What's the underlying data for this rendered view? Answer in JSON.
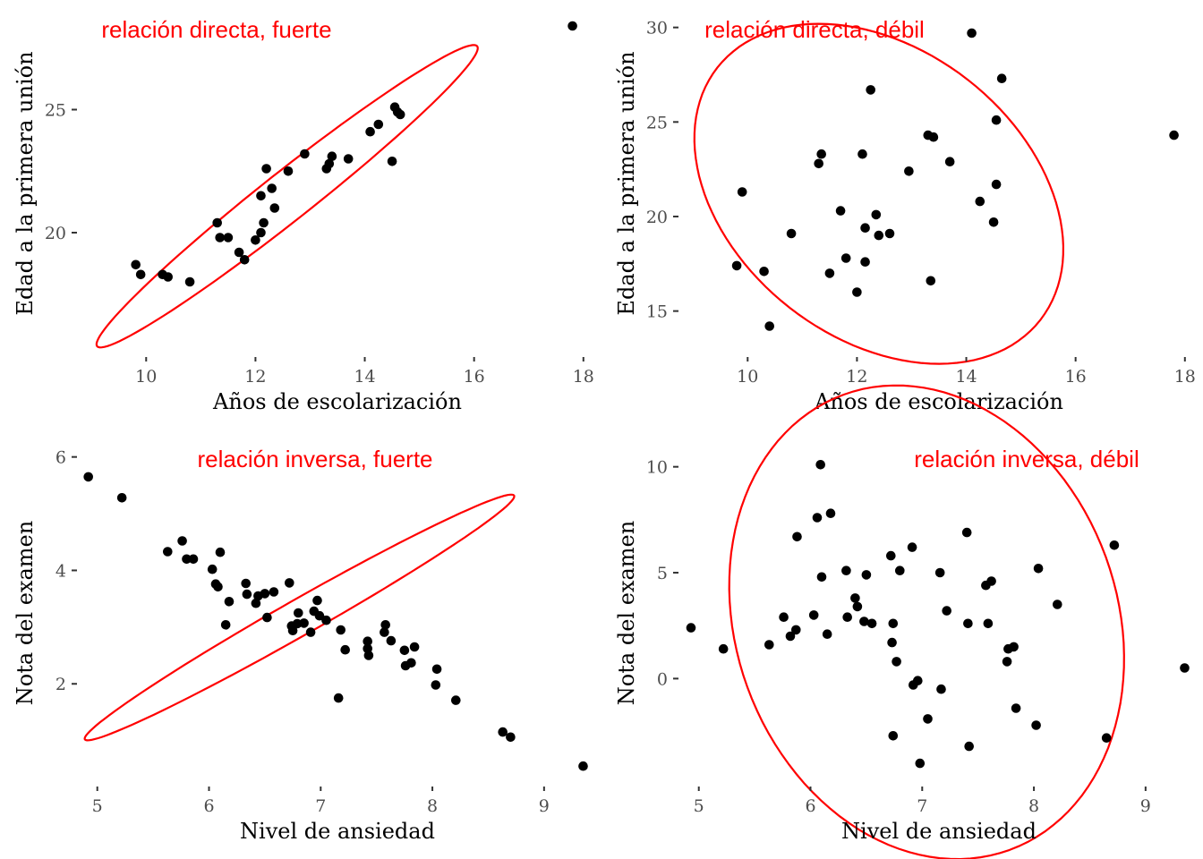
{
  "annotation_color": "#ff0000",
  "point_color": "#000000",
  "chart_data": [
    {
      "type": "scatter",
      "annotation": "relación directa, fuerte",
      "xlabel": "Años de escolarización",
      "ylabel": "Edad a la primera unión",
      "xlim": [
        8.8,
        18.2
      ],
      "ylim": [
        15.2,
        28.8
      ],
      "xticks": [
        10,
        12,
        14,
        16,
        18
      ],
      "yticks": [
        20,
        25
      ],
      "ellipse": {
        "cx": 12.58,
        "cy": 21.48,
        "rx": 4.43,
        "ry": 0.99,
        "angle_deg": 38.3
      },
      "points": [
        [
          9.81,
          18.7
        ],
        [
          9.9,
          18.3
        ],
        [
          10.3,
          18.3
        ],
        [
          10.4,
          18.2
        ],
        [
          10.8,
          18.0
        ],
        [
          11.3,
          20.4
        ],
        [
          11.35,
          19.8
        ],
        [
          11.5,
          19.8
        ],
        [
          11.7,
          19.2
        ],
        [
          11.8,
          18.9
        ],
        [
          12.0,
          19.7
        ],
        [
          12.1,
          20.0
        ],
        [
          12.1,
          21.5
        ],
        [
          12.15,
          20.4
        ],
        [
          12.2,
          22.6
        ],
        [
          12.3,
          21.8
        ],
        [
          12.35,
          21.0
        ],
        [
          12.6,
          22.5
        ],
        [
          12.9,
          23.2
        ],
        [
          13.3,
          22.6
        ],
        [
          13.35,
          22.8
        ],
        [
          13.4,
          23.1
        ],
        [
          13.7,
          23.0
        ],
        [
          14.1,
          24.1
        ],
        [
          14.25,
          24.4
        ],
        [
          14.5,
          22.9
        ],
        [
          14.55,
          25.1
        ],
        [
          14.6,
          24.9
        ],
        [
          14.65,
          24.8
        ],
        [
          17.8,
          28.4
        ]
      ]
    },
    {
      "type": "scatter",
      "annotation": "relación directa, débil",
      "xlabel": "Años de escolarización",
      "ylabel": "Edad a la primera unión",
      "xlim": [
        8.8,
        18.2
      ],
      "ylim": [
        12.9,
        30.6
      ],
      "xticks": [
        10,
        12,
        14,
        16,
        18
      ],
      "yticks": [
        15,
        20,
        25,
        30
      ],
      "ellipse": {
        "cx": 12.4,
        "cy": 21.2,
        "rx": 3.75,
        "ry": 7.65,
        "angle_deg": -38
      },
      "points": [
        [
          9.8,
          17.4
        ],
        [
          9.9,
          21.3
        ],
        [
          10.3,
          17.1
        ],
        [
          10.4,
          14.2
        ],
        [
          10.8,
          19.1
        ],
        [
          11.3,
          22.8
        ],
        [
          11.35,
          23.3
        ],
        [
          11.5,
          17.0
        ],
        [
          11.7,
          20.3
        ],
        [
          11.8,
          17.8
        ],
        [
          12.0,
          16.0
        ],
        [
          12.1,
          23.3
        ],
        [
          12.15,
          17.6
        ],
        [
          12.15,
          19.4
        ],
        [
          12.25,
          26.7
        ],
        [
          12.35,
          20.1
        ],
        [
          12.4,
          19.0
        ],
        [
          12.6,
          19.1
        ],
        [
          12.95,
          22.4
        ],
        [
          13.3,
          24.3
        ],
        [
          13.35,
          16.6
        ],
        [
          13.4,
          24.2
        ],
        [
          13.7,
          22.9
        ],
        [
          14.1,
          29.7
        ],
        [
          14.25,
          20.8
        ],
        [
          14.5,
          19.7
        ],
        [
          14.55,
          25.1
        ],
        [
          14.55,
          21.7
        ],
        [
          14.65,
          27.3
        ],
        [
          17.8,
          24.3
        ]
      ]
    },
    {
      "type": "scatter",
      "annotation": "relación inversa, fuerte",
      "xlabel": "Nivel de ansiedad",
      "ylabel": "Nota del examen",
      "xlim": [
        4.85,
        9.45
      ],
      "ylim": [
        0.3,
        6.2
      ],
      "xticks": [
        5,
        6,
        7,
        8,
        9
      ],
      "yticks": [
        2,
        4,
        6
      ],
      "ellipse": {
        "cx": 6.81,
        "cy": 3.17,
        "rx": 2.21,
        "ry": 0.315,
        "angle_deg": 29.6
      },
      "points": [
        [
          4.92,
          5.65
        ],
        [
          5.22,
          5.28
        ],
        [
          5.63,
          4.33
        ],
        [
          5.76,
          4.52
        ],
        [
          5.8,
          4.2
        ],
        [
          5.86,
          4.2
        ],
        [
          6.03,
          4.02
        ],
        [
          6.06,
          3.76
        ],
        [
          6.08,
          3.71
        ],
        [
          6.1,
          4.32
        ],
        [
          6.15,
          3.04
        ],
        [
          6.18,
          3.45
        ],
        [
          6.33,
          3.77
        ],
        [
          6.34,
          3.58
        ],
        [
          6.42,
          3.42
        ],
        [
          6.44,
          3.55
        ],
        [
          6.5,
          3.59
        ],
        [
          6.52,
          3.17
        ],
        [
          6.58,
          3.62
        ],
        [
          6.72,
          3.78
        ],
        [
          6.74,
          3.02
        ],
        [
          6.75,
          2.94
        ],
        [
          6.79,
          3.06
        ],
        [
          6.8,
          3.25
        ],
        [
          6.85,
          3.07
        ],
        [
          6.91,
          2.91
        ],
        [
          6.94,
          3.28
        ],
        [
          6.97,
          3.47
        ],
        [
          6.99,
          3.2
        ],
        [
          7.05,
          3.12
        ],
        [
          7.16,
          1.75
        ],
        [
          7.18,
          2.95
        ],
        [
          7.22,
          2.6
        ],
        [
          7.42,
          2.75
        ],
        [
          7.42,
          2.62
        ],
        [
          7.43,
          2.5
        ],
        [
          7.57,
          2.91
        ],
        [
          7.58,
          3.04
        ],
        [
          7.63,
          2.76
        ],
        [
          7.75,
          2.59
        ],
        [
          7.76,
          2.32
        ],
        [
          7.81,
          2.37
        ],
        [
          7.84,
          2.65
        ],
        [
          8.03,
          1.98
        ],
        [
          8.04,
          2.26
        ],
        [
          8.21,
          1.71
        ],
        [
          8.63,
          1.15
        ],
        [
          8.7,
          1.06
        ],
        [
          9.35,
          0.55
        ]
      ]
    },
    {
      "type": "scatter",
      "annotation": "relación inversa, débil",
      "xlabel": "Nivel de ansiedad",
      "ylabel": "Nota del examen",
      "xlim": [
        4.85,
        9.45
      ],
      "ylim": [
        -4.8,
        11.0
      ],
      "xticks": [
        5,
        6,
        7,
        8,
        9
      ],
      "yticks": [
        0,
        5,
        10
      ],
      "ellipse": {
        "cx": 7.04,
        "cy": 2.66,
        "rx": 2.17,
        "ry": 9.0,
        "angle_deg": -70
      },
      "points": [
        [
          4.93,
          2.4
        ],
        [
          5.22,
          1.4
        ],
        [
          5.63,
          1.6
        ],
        [
          5.76,
          2.9
        ],
        [
          5.82,
          2.0
        ],
        [
          5.87,
          2.3
        ],
        [
          5.88,
          6.7
        ],
        [
          6.03,
          3.0
        ],
        [
          6.06,
          7.6
        ],
        [
          6.09,
          10.1
        ],
        [
          6.1,
          4.8
        ],
        [
          6.15,
          2.1
        ],
        [
          6.18,
          7.8
        ],
        [
          6.32,
          5.1
        ],
        [
          6.33,
          2.9
        ],
        [
          6.4,
          3.8
        ],
        [
          6.42,
          3.4
        ],
        [
          6.48,
          2.7
        ],
        [
          6.5,
          4.9
        ],
        [
          6.55,
          2.6
        ],
        [
          6.72,
          5.8
        ],
        [
          6.73,
          1.7
        ],
        [
          6.74,
          2.6
        ],
        [
          6.74,
          -2.7
        ],
        [
          6.77,
          0.8
        ],
        [
          6.8,
          5.1
        ],
        [
          6.91,
          6.2
        ],
        [
          6.92,
          -0.3
        ],
        [
          6.96,
          -0.1
        ],
        [
          6.98,
          -4.0
        ],
        [
          7.05,
          -1.9
        ],
        [
          7.16,
          5.0
        ],
        [
          7.17,
          -0.5
        ],
        [
          7.22,
          3.2
        ],
        [
          7.4,
          6.9
        ],
        [
          7.41,
          2.6
        ],
        [
          7.42,
          -3.2
        ],
        [
          7.57,
          4.4
        ],
        [
          7.59,
          2.6
        ],
        [
          7.62,
          4.6
        ],
        [
          7.76,
          0.8
        ],
        [
          7.77,
          1.4
        ],
        [
          7.82,
          1.5
        ],
        [
          7.84,
          -1.4
        ],
        [
          8.02,
          -2.2
        ],
        [
          8.04,
          5.2
        ],
        [
          8.21,
          3.5
        ],
        [
          8.65,
          -2.8
        ],
        [
          8.72,
          6.3
        ],
        [
          9.35,
          0.5
        ]
      ]
    }
  ]
}
